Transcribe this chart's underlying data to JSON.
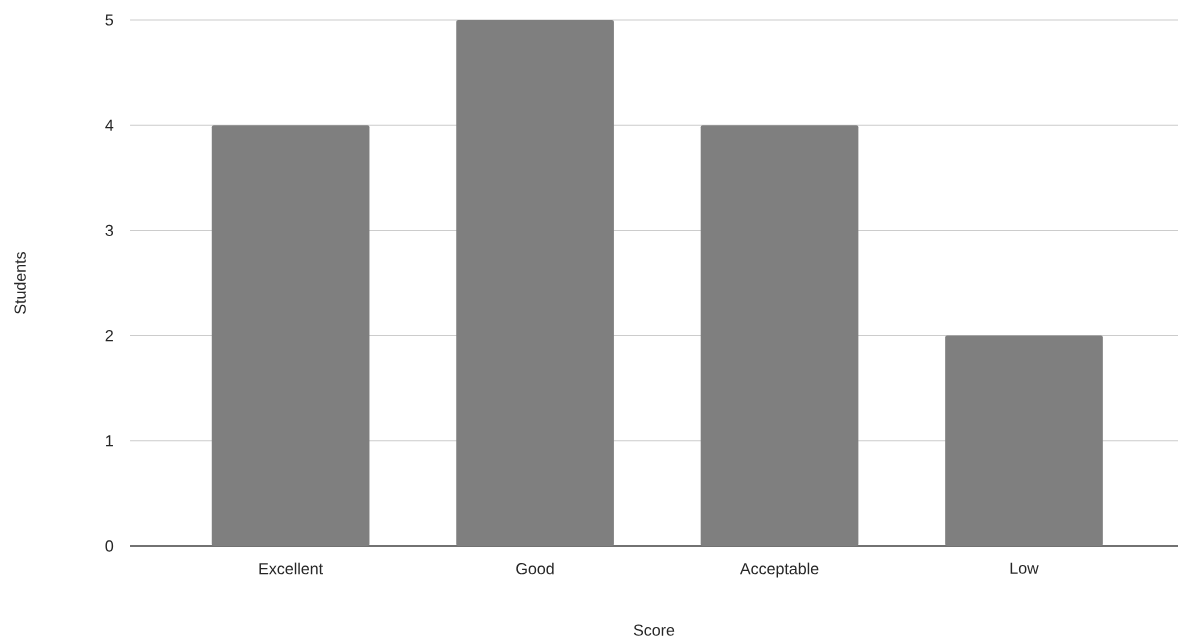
{
  "chart_data": {
    "type": "bar",
    "xlabel": "Score",
    "ylabel": "Students",
    "categories": [
      "Excellent",
      "Good",
      "Acceptable",
      "Low"
    ],
    "values": [
      4,
      5,
      4,
      2
    ],
    "color": "#7f7f7f",
    "ylim": [
      0,
      5
    ],
    "yticks": [
      0,
      1,
      2,
      3,
      4,
      5
    ],
    "grid": "y"
  }
}
